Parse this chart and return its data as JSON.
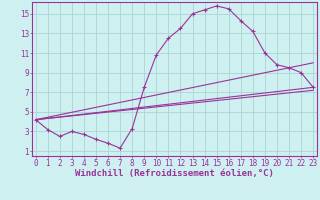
{
  "xlabel": "Windchill (Refroidissement éolien,°C)",
  "bg_color": "#cff0f0",
  "line_color": "#993399",
  "grid_color": "#aad4d4",
  "x_ticks": [
    0,
    1,
    2,
    3,
    4,
    5,
    6,
    7,
    8,
    9,
    10,
    11,
    12,
    13,
    14,
    15,
    16,
    17,
    18,
    19,
    20,
    21,
    22,
    23
  ],
  "y_ticks": [
    1,
    3,
    5,
    7,
    9,
    11,
    13,
    15
  ],
  "xlim": [
    -0.3,
    23.3
  ],
  "ylim": [
    0.5,
    16.2
  ],
  "curve_x": [
    0,
    1,
    2,
    3,
    4,
    5,
    6,
    7,
    8,
    9,
    10,
    11,
    12,
    13,
    14,
    15,
    16,
    17,
    18,
    19,
    20,
    21,
    22,
    23
  ],
  "curve_y": [
    4.2,
    3.2,
    2.5,
    3.0,
    2.7,
    2.2,
    1.8,
    1.3,
    3.3,
    7.5,
    10.8,
    12.5,
    13.5,
    15.0,
    15.4,
    15.8,
    15.5,
    14.3,
    13.2,
    11.0,
    9.8,
    9.5,
    9.0,
    7.5
  ],
  "line1_x": [
    0,
    23
  ],
  "line1_y": [
    4.2,
    7.2
  ],
  "line2_x": [
    0,
    23
  ],
  "line2_y": [
    4.2,
    7.5
  ],
  "line3_x": [
    0,
    23
  ],
  "line3_y": [
    4.2,
    10.0
  ],
  "font_size_tick": 5.5,
  "font_size_label": 6.5
}
